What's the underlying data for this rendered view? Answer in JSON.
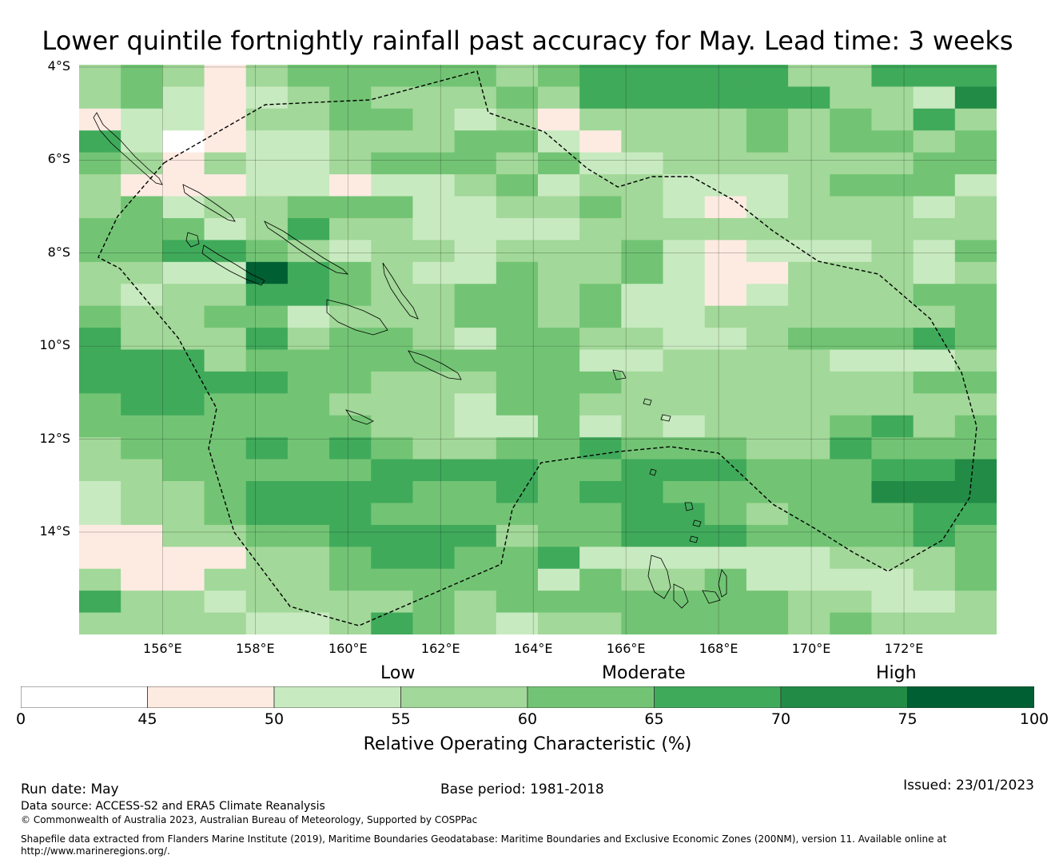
{
  "title": "Lower quintile fortnightly rainfall past accuracy for May. Lead time: 3 weeks",
  "map": {
    "region": "Solomon Islands / Vanuatu region",
    "lat_labels": [
      "4°S",
      "6°S",
      "8°S",
      "10°S",
      "12°S",
      "14°S"
    ],
    "lon_labels": [
      "156°E",
      "158°E",
      "160°E",
      "162°E",
      "164°E",
      "166°E",
      "168°E",
      "170°E",
      "172°E"
    ],
    "grid": {
      "lon_start": 154.2,
      "lon_step": 0.825,
      "lat_start": -4.0,
      "lat_step": 0.55,
      "note": "roc class index per cell: 0 = <45 white, 1 = 45-50, 2 = 50-55, 3 = 55-60, 4 = 60-65, 5 = 65-70, 6 = 70-75, 7 = 75-100",
      "rows": [
        "3431344444345555533555",
        "3421234333435555553326",
        "1221334432313333434353",
        "5201223334421333434434",
        "4313223444342233333344",
        "3111221223423322234442",
        "3423344422334321233323",
        "4442353322223333333333",
        "4455432332333421222324",
        "3322754322433421133323",
        "3233554334434221233344",
        "4334423334434223333334",
        "5333534432443322344454",
        "5553444444442233332223",
        "5555544333444333333344",
        "4554443332443333333333",
        "4444444332242323334534",
        "3444545433445444335444",
        "3344444555544555444556",
        "2334555544545544444666",
        "2334555444444554344455",
        "1133445555344555444454",
        "1111334554452222223334",
        "3113334444424334222234",
        "5332333343444444433223",
        "3333223543233444434333"
      ]
    },
    "boundary_label": "Maritime boundaries (EEZ, 200NM)"
  },
  "colorbar": {
    "classes": [
      {
        "from": 0,
        "to": 45,
        "color": "#ffffff"
      },
      {
        "from": 45,
        "to": 50,
        "color": "#fdebe2"
      },
      {
        "from": 50,
        "to": 55,
        "color": "#c8eac0"
      },
      {
        "from": 55,
        "to": 60,
        "color": "#a2d899"
      },
      {
        "from": 60,
        "to": 65,
        "color": "#72c474"
      },
      {
        "from": 65,
        "to": 70,
        "color": "#40aa5b"
      },
      {
        "from": 70,
        "to": 75,
        "color": "#228b46"
      },
      {
        "from": 75,
        "to": 100,
        "color": "#005f33"
      }
    ],
    "tick_labels": [
      "0",
      "45",
      "50",
      "55",
      "60",
      "65",
      "70",
      "75",
      "100"
    ],
    "category_labels": {
      "low": "Low",
      "moderate": "Moderate",
      "high": "High"
    },
    "title": "Relative Operating Characteristic (%)"
  },
  "footer": {
    "run_date": "Run date: May",
    "base_period": "Base period: 1981-2018",
    "issued": "Issued: 23/01/2023",
    "data_source": "Data source: ACCESS-S2 and ERA5 Climate Reanalysis",
    "copyright": "© Commonwealth of Australia 2023, Australian Bureau of Meteorology, Supported by COSPPac",
    "shapefile_line1": "Shapefile data extracted from Flanders Marine Institute (2019), Maritime Boundaries Geodatabase: Maritime Boundaries and Exclusive Economic Zones (200NM), version 11. Available online at",
    "shapefile_line2": "http://www.marineregions.org/."
  }
}
